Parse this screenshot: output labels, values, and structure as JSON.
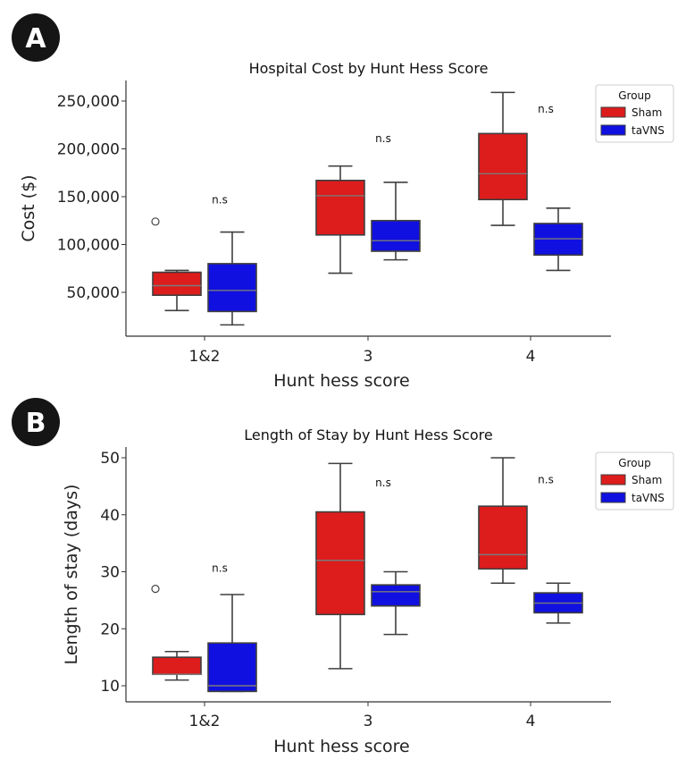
{
  "chart_data": [
    {
      "panel": "A",
      "type": "box",
      "title": "Hospital Cost by Hunt Hess Score",
      "xlabel": "Hunt hess score",
      "ylabel": "Cost ($)",
      "ylim": [
        0,
        270000
      ],
      "yticks": [
        50000,
        100000,
        150000,
        200000,
        250000
      ],
      "ytick_labels": [
        "50,000",
        "100,000",
        "150,000",
        "200,000",
        "250,000"
      ],
      "categories": [
        "1&2",
        "3",
        "4"
      ],
      "annotations": [
        "n.s",
        "n.s",
        "n.s"
      ],
      "annotation_values": [
        143000,
        207000,
        238000
      ],
      "legend": {
        "title": "Group",
        "position": "top-right"
      },
      "series": [
        {
          "name": "Sham",
          "color": "#dd1c1c",
          "boxes": [
            {
              "whislo": 31000,
              "q1": 47000,
              "median": 57000,
              "q3": 71000,
              "whishi": 73000,
              "outliers": [
                124000
              ]
            },
            {
              "whislo": 70000,
              "q1": 110000,
              "median": 151000,
              "q3": 167000,
              "whishi": 182000,
              "outliers": []
            },
            {
              "whislo": 120000,
              "q1": 147000,
              "median": 174000,
              "q3": 216000,
              "whishi": 259000,
              "outliers": []
            }
          ]
        },
        {
          "name": "taVNS",
          "color": "#1010e0",
          "boxes": [
            {
              "whislo": 16000,
              "q1": 30000,
              "median": 52000,
              "q3": 80000,
              "whishi": 113000,
              "outliers": []
            },
            {
              "whislo": 84000,
              "q1": 93000,
              "median": 104000,
              "q3": 125000,
              "whishi": 165000,
              "outliers": []
            },
            {
              "whislo": 73000,
              "q1": 89000,
              "median": 106000,
              "q3": 122000,
              "whishi": 138000,
              "outliers": []
            }
          ]
        }
      ]
    },
    {
      "panel": "B",
      "type": "box",
      "title": "Length of Stay by Hunt Hess Score",
      "xlabel": "Hunt hess score",
      "ylabel": "Length of stay (days)",
      "ylim": [
        7.2,
        51.8
      ],
      "yticks": [
        10,
        20,
        30,
        40,
        50
      ],
      "ytick_labels": [
        "10",
        "20",
        "30",
        "40",
        "50"
      ],
      "categories": [
        "1&2",
        "3",
        "4"
      ],
      "annotations": [
        "n.s",
        "n.s",
        "n.s"
      ],
      "annotation_values": [
        30,
        45,
        45.5
      ],
      "legend": {
        "title": "Group",
        "position": "top-right"
      },
      "series": [
        {
          "name": "Sham",
          "color": "#dd1c1c",
          "boxes": [
            {
              "whislo": 11,
              "q1": 12,
              "median": 12,
              "q3": 15,
              "whishi": 16,
              "outliers": [
                27
              ]
            },
            {
              "whislo": 13,
              "q1": 22.5,
              "median": 32,
              "q3": 40.5,
              "whishi": 49,
              "outliers": []
            },
            {
              "whislo": 28,
              "q1": 30.5,
              "median": 33,
              "q3": 41.5,
              "whishi": 50,
              "outliers": []
            }
          ]
        },
        {
          "name": "taVNS",
          "color": "#1010e0",
          "boxes": [
            {
              "whislo": 9,
              "q1": 9,
              "median": 10,
              "q3": 17.5,
              "whishi": 26,
              "outliers": []
            },
            {
              "whislo": 19,
              "q1": 24,
              "median": 26.5,
              "q3": 27.7,
              "whishi": 30,
              "outliers": []
            },
            {
              "whislo": 21,
              "q1": 22.8,
              "median": 24.5,
              "q3": 26.3,
              "whishi": 28,
              "outliers": []
            }
          ]
        }
      ]
    }
  ]
}
